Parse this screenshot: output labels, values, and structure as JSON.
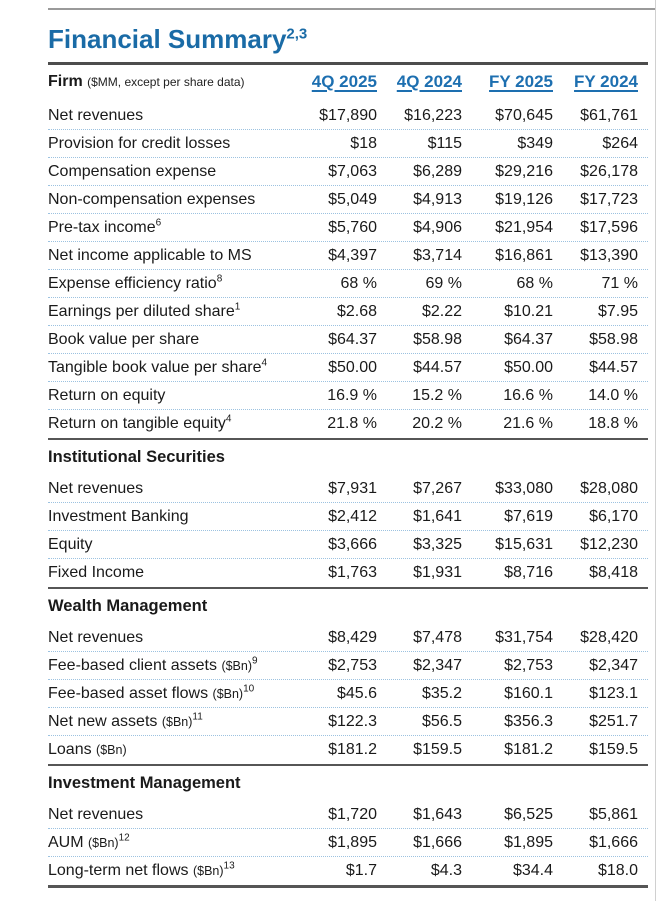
{
  "page": {
    "title": "Financial Summary",
    "title_superscript": "2,3"
  },
  "colors": {
    "accent_blue": "#1A6BA6",
    "column_header_blue": "#1D6FB0",
    "dark_rule": "#4D4D4D",
    "row_separator_blue": "#9CC2E0"
  },
  "table": {
    "firm_label": "Firm",
    "firm_note": "($MM, except per share data)",
    "columns": [
      "4Q 2025",
      "4Q 2024",
      "FY 2025",
      "FY 2024"
    ],
    "sections": [
      {
        "title": "",
        "rows": [
          {
            "label": "Net revenues",
            "note": "",
            "sup": "",
            "values": [
              "$17,890",
              "$16,223",
              "$70,645",
              "$61,761"
            ]
          },
          {
            "label": "Provision for credit losses",
            "note": "",
            "sup": "",
            "values": [
              "$18",
              "$115",
              "$349",
              "$264"
            ]
          },
          {
            "label": "Compensation expense",
            "note": "",
            "sup": "",
            "values": [
              "$7,063",
              "$6,289",
              "$29,216",
              "$26,178"
            ]
          },
          {
            "label": "Non-compensation expenses",
            "note": "",
            "sup": "",
            "values": [
              "$5,049",
              "$4,913",
              "$19,126",
              "$17,723"
            ]
          },
          {
            "label": "Pre-tax income",
            "note": "",
            "sup": "6",
            "values": [
              "$5,760",
              "$4,906",
              "$21,954",
              "$17,596"
            ]
          },
          {
            "label": "Net income applicable to MS",
            "note": "",
            "sup": "",
            "values": [
              "$4,397",
              "$3,714",
              "$16,861",
              "$13,390"
            ]
          },
          {
            "label": "Expense efficiency ratio",
            "note": "",
            "sup": "8",
            "values": [
              "68 %",
              "69 %",
              "68 %",
              "71 %"
            ]
          },
          {
            "label": "Earnings per diluted share",
            "note": "",
            "sup": "1",
            "values": [
              "$2.68",
              "$2.22",
              "$10.21",
              "$7.95"
            ]
          },
          {
            "label": "Book value per share",
            "note": "",
            "sup": "",
            "values": [
              "$64.37",
              "$58.98",
              "$64.37",
              "$58.98"
            ]
          },
          {
            "label": "Tangible book value per share",
            "note": "",
            "sup": "4",
            "values": [
              "$50.00",
              "$44.57",
              "$50.00",
              "$44.57"
            ]
          },
          {
            "label": "Return on equity",
            "note": "",
            "sup": "",
            "values": [
              "16.9 %",
              "15.2 %",
              "16.6 %",
              "14.0 %"
            ]
          },
          {
            "label": "Return on tangible equity",
            "note": "",
            "sup": "4",
            "values": [
              "21.8 %",
              "20.2 %",
              "21.6 %",
              "18.8 %"
            ]
          }
        ]
      },
      {
        "title": "Institutional Securities",
        "rows": [
          {
            "label": "Net revenues",
            "note": "",
            "sup": "",
            "values": [
              "$7,931",
              "$7,267",
              "$33,080",
              "$28,080"
            ]
          },
          {
            "label": "Investment Banking",
            "note": "",
            "sup": "",
            "values": [
              "$2,412",
              "$1,641",
              "$7,619",
              "$6,170"
            ]
          },
          {
            "label": "Equity",
            "note": "",
            "sup": "",
            "values": [
              "$3,666",
              "$3,325",
              "$15,631",
              "$12,230"
            ]
          },
          {
            "label": "Fixed Income",
            "note": "",
            "sup": "",
            "values": [
              "$1,763",
              "$1,931",
              "$8,716",
              "$8,418"
            ]
          }
        ]
      },
      {
        "title": "Wealth Management",
        "rows": [
          {
            "label": "Net revenues",
            "note": "",
            "sup": "",
            "values": [
              "$8,429",
              "$7,478",
              "$31,754",
              "$28,420"
            ]
          },
          {
            "label": "Fee-based client assets",
            "note": "($Bn)",
            "sup": "9",
            "values": [
              "$2,753",
              "$2,347",
              "$2,753",
              "$2,347"
            ]
          },
          {
            "label": "Fee-based asset flows",
            "note": "($Bn)",
            "sup": "10",
            "values": [
              "$45.6",
              "$35.2",
              "$160.1",
              "$123.1"
            ]
          },
          {
            "label": "Net new assets",
            "note": "($Bn)",
            "sup": "11",
            "values": [
              "$122.3",
              "$56.5",
              "$356.3",
              "$251.7"
            ]
          },
          {
            "label": "Loans",
            "note": "($Bn)",
            "sup": "",
            "values": [
              "$181.2",
              "$159.5",
              "$181.2",
              "$159.5"
            ]
          }
        ]
      },
      {
        "title": "Investment Management",
        "rows": [
          {
            "label": "Net revenues",
            "note": "",
            "sup": "",
            "values": [
              "$1,720",
              "$1,643",
              "$6,525",
              "$5,861"
            ]
          },
          {
            "label": "AUM",
            "note": "($Bn)",
            "sup": "12",
            "values": [
              "$1,895",
              "$1,666",
              "$1,895",
              "$1,666"
            ]
          },
          {
            "label": "Long-term net flows",
            "note": "($Bn)",
            "sup": "13",
            "values": [
              "$1.7",
              "$4.3",
              "$34.4",
              "$18.0"
            ]
          }
        ]
      }
    ]
  }
}
